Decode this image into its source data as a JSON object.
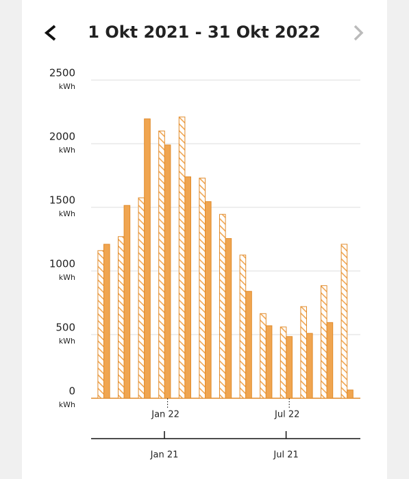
{
  "chart_data": {
    "type": "bar",
    "title": "1 Okt 2021 - 31 Okt 2022",
    "categories": [
      null,
      null,
      null,
      "Jan 22",
      null,
      null,
      null,
      null,
      null,
      "Jul 22",
      null,
      null,
      null
    ],
    "categories_previous": [
      null,
      null,
      null,
      "Jan 21",
      null,
      null,
      null,
      null,
      null,
      "Jul 21",
      null,
      null,
      null
    ],
    "series": [
      {
        "color": "#f0a550",
        "hatched": true,
        "values": [
          1160,
          1270,
          1575,
          2100,
          2210,
          1730,
          1445,
          1125,
          665,
          560,
          720,
          885,
          1210
        ]
      },
      {
        "color": "#f0a550",
        "hatched": false,
        "values": [
          1210,
          1515,
          2195,
          1990,
          1740,
          1545,
          1255,
          840,
          570,
          485,
          510,
          595,
          65
        ]
      }
    ],
    "ylim": [
      0,
      2500
    ],
    "yticks": [
      0,
      500,
      1000,
      1500,
      2000,
      2500
    ],
    "y_unit": "kWh",
    "grid": true
  }
}
